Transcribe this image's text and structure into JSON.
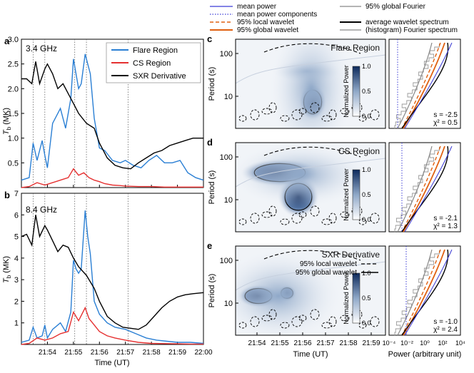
{
  "legend": {
    "items": [
      {
        "label": "mean power",
        "color": "#3b3bd6",
        "style": "solid"
      },
      {
        "label": "mean power components",
        "color": "#3b3bd6",
        "style": "dotted"
      },
      {
        "label": "95% local wavelet",
        "color": "#e06010",
        "style": "dashed"
      },
      {
        "label": "95% global wavelet",
        "color": "#e06010",
        "style": "solid"
      },
      {
        "label": "95% global Fourier",
        "color": "#888888",
        "style": "solid"
      },
      {
        "label": "average wavelet spectrum",
        "color": "#000000",
        "style": "solid"
      },
      {
        "label": "(histogram) Fourier spectrum",
        "color": "#888888",
        "style": "solid"
      }
    ]
  },
  "chart_data": [
    {
      "panel": "a",
      "type": "line",
      "title": "3.4 GHz",
      "xlabel": "",
      "ylabel": "T_b (MK)",
      "ylim": [
        0,
        3.0
      ],
      "yticks": [
        0.5,
        1.0,
        1.5,
        2.0,
        2.5,
        3.0
      ],
      "xticks": [
        "21:54",
        "21:55",
        "21:56",
        "21:57",
        "21:58",
        "21:59",
        "22:00"
      ],
      "xlim_min": [
        53.0,
        60.0
      ],
      "vlines_min": [
        53.45,
        53.9,
        55.05,
        55.5,
        57.1
      ],
      "legend_position": "top-right",
      "series": [
        {
          "name": "Flare Region",
          "color": "#2a7fd4",
          "x": [
            53.0,
            53.3,
            53.45,
            53.6,
            53.8,
            53.9,
            54.0,
            54.2,
            54.5,
            54.7,
            54.9,
            55.0,
            55.1,
            55.2,
            55.3,
            55.45,
            55.55,
            55.65,
            55.8,
            56.0,
            56.2,
            56.5,
            56.8,
            57.0,
            57.3,
            57.6,
            57.9,
            58.2,
            58.5,
            58.8,
            59.1,
            59.4,
            59.7,
            60.0
          ],
          "values": [
            0.15,
            0.2,
            0.9,
            0.55,
            0.95,
            0.65,
            0.4,
            1.3,
            1.6,
            1.2,
            1.8,
            2.6,
            2.3,
            2.0,
            2.1,
            2.7,
            2.5,
            2.3,
            1.4,
            0.8,
            0.75,
            0.55,
            0.5,
            0.55,
            0.45,
            0.4,
            0.55,
            0.65,
            0.5,
            0.5,
            0.55,
            0.3,
            0.2,
            0.15
          ]
        },
        {
          "name": "CS Region",
          "color": "#e53030",
          "x": [
            53.0,
            53.3,
            53.6,
            53.9,
            54.2,
            54.5,
            54.8,
            55.0,
            55.2,
            55.4,
            55.6,
            55.8,
            56.0,
            56.2,
            56.5,
            56.8,
            57.0,
            57.5,
            58.0,
            58.5,
            59.0,
            59.5,
            60.0
          ],
          "values": [
            0.0,
            0.02,
            0.1,
            0.05,
            0.1,
            0.15,
            0.2,
            0.38,
            0.25,
            0.3,
            0.2,
            0.15,
            0.12,
            0.08,
            0.05,
            0.04,
            0.03,
            0.02,
            0.02,
            0.01,
            0.01,
            0.01,
            0.01
          ]
        },
        {
          "name": "SXR Derivative",
          "color": "#000000",
          "x": [
            53.0,
            53.2,
            53.4,
            53.55,
            53.7,
            53.9,
            54.0,
            54.2,
            54.4,
            54.6,
            54.8,
            55.0,
            55.2,
            55.5,
            55.8,
            56.0,
            56.3,
            56.6,
            56.9,
            57.2,
            57.5,
            57.8,
            58.1,
            58.4,
            58.7,
            59.0,
            59.3,
            59.6,
            60.0
          ],
          "values": [
            2.2,
            2.2,
            2.1,
            2.55,
            2.1,
            2.4,
            2.5,
            2.3,
            2.0,
            2.1,
            1.9,
            1.7,
            1.5,
            1.3,
            1.2,
            0.9,
            0.6,
            0.45,
            0.4,
            0.38,
            0.5,
            0.6,
            0.7,
            0.75,
            0.85,
            0.9,
            0.95,
            1.0,
            1.0
          ]
        }
      ]
    },
    {
      "panel": "b",
      "type": "line",
      "title": "8.4 GHz",
      "xlabel": "Time (UT)",
      "ylabel": "T_b (MK)",
      "ylim": [
        0,
        7
      ],
      "yticks": [
        1,
        2,
        3,
        4,
        5,
        6,
        7
      ],
      "xticks": [
        "21:54",
        "21:55",
        "21:56",
        "21:57",
        "21:58",
        "21:59",
        "22:00"
      ],
      "xlim_min": [
        53.0,
        60.0
      ],
      "vlines_min": [
        53.45,
        53.9,
        55.05,
        55.5,
        57.1
      ],
      "series": [
        {
          "name": "Flare Region",
          "color": "#2a7fd4",
          "x": [
            53.0,
            53.3,
            53.45,
            53.6,
            53.8,
            53.9,
            54.0,
            54.2,
            54.5,
            54.7,
            54.9,
            55.0,
            55.1,
            55.2,
            55.3,
            55.45,
            55.55,
            55.65,
            55.8,
            56.0,
            56.3,
            56.6,
            57.0,
            57.4,
            57.8,
            58.2,
            58.6,
            59.0,
            59.5,
            60.0
          ],
          "values": [
            0.1,
            0.2,
            0.8,
            0.3,
            0.4,
            0.9,
            0.3,
            0.7,
            1.0,
            0.6,
            1.5,
            3.9,
            3.5,
            3.3,
            3.5,
            6.2,
            5.0,
            4.2,
            2.0,
            1.4,
            1.0,
            0.8,
            0.7,
            0.5,
            0.3,
            0.2,
            0.15,
            0.1,
            0.1,
            0.05
          ]
        },
        {
          "name": "CS Region",
          "color": "#e53030",
          "x": [
            53.0,
            53.3,
            53.6,
            53.9,
            54.2,
            54.5,
            54.8,
            55.0,
            55.2,
            55.45,
            55.6,
            55.8,
            56.0,
            56.3,
            56.6,
            57.0,
            57.5,
            58.0,
            58.5,
            59.0,
            59.5,
            60.0
          ],
          "values": [
            0.0,
            0.05,
            0.3,
            0.2,
            0.3,
            0.5,
            0.6,
            1.5,
            1.1,
            1.7,
            1.2,
            0.9,
            0.6,
            0.4,
            0.3,
            0.2,
            0.1,
            0.05,
            0.04,
            0.03,
            0.02,
            0.02
          ]
        },
        {
          "name": "SXR Derivative",
          "color": "#000000",
          "x": [
            53.0,
            53.2,
            53.4,
            53.55,
            53.7,
            53.9,
            54.0,
            54.2,
            54.4,
            54.6,
            54.8,
            55.0,
            55.2,
            55.5,
            55.8,
            56.0,
            56.3,
            56.6,
            56.9,
            57.2,
            57.5,
            57.8,
            58.1,
            58.4,
            58.7,
            59.0,
            59.3,
            59.6,
            60.0
          ],
          "values": [
            5.0,
            5.1,
            4.6,
            6.0,
            5.0,
            5.5,
            5.3,
            4.8,
            4.3,
            4.6,
            4.5,
            4.0,
            3.6,
            3.2,
            2.6,
            2.0,
            1.3,
            1.0,
            0.8,
            0.75,
            0.7,
            0.9,
            1.3,
            1.7,
            2.0,
            2.2,
            2.3,
            2.35,
            2.4
          ]
        }
      ]
    },
    {
      "panel": "c",
      "type": "heatmap",
      "title": "Flare Region",
      "ylabel": "Period (s)",
      "yscale": "log",
      "yticks": [
        10,
        100
      ],
      "colorbar_label": "Normalized Power",
      "colorbar_ticks": [
        0.0,
        0.5,
        1.0
      ],
      "side_spectrum": {
        "annotation_s": "s = -2.5",
        "annotation_chi": "χ² = 0.5",
        "xscale": "log"
      }
    },
    {
      "panel": "d",
      "type": "heatmap",
      "title": "CS Region",
      "ylabel": "Period (s)",
      "yscale": "log",
      "yticks": [
        10,
        100
      ],
      "colorbar_label": "Normalized Power",
      "colorbar_ticks": [
        0.0,
        0.5,
        1.0
      ],
      "side_spectrum": {
        "annotation_s": "s = -2.1",
        "annotation_chi": "χ² = 1.3",
        "xscale": "log"
      }
    },
    {
      "panel": "e",
      "type": "heatmap",
      "title": "SXR Derivative",
      "xlabel": "Time (UT)",
      "ylabel": "Period (s)",
      "yscale": "log",
      "yticks": [
        10,
        100
      ],
      "xticks": [
        "21:54",
        "21:55",
        "21:56",
        "21:57",
        "21:58",
        "21:59"
      ],
      "colorbar_label": "Normalized Power",
      "colorbar_ticks": [
        0.0,
        0.5,
        1.0
      ],
      "inner_legend": [
        "95% local wavelet",
        "95% global wavelet"
      ],
      "side_spectrum": {
        "annotation_s": "s = -1.0",
        "annotation_chi": "χ² = 2.4",
        "xscale": "log",
        "xlabel": "Power (arbitrary unit)",
        "xticks": [
          "10⁻⁴",
          "10⁻²",
          "10⁰",
          "10²",
          "10⁴"
        ]
      }
    }
  ]
}
